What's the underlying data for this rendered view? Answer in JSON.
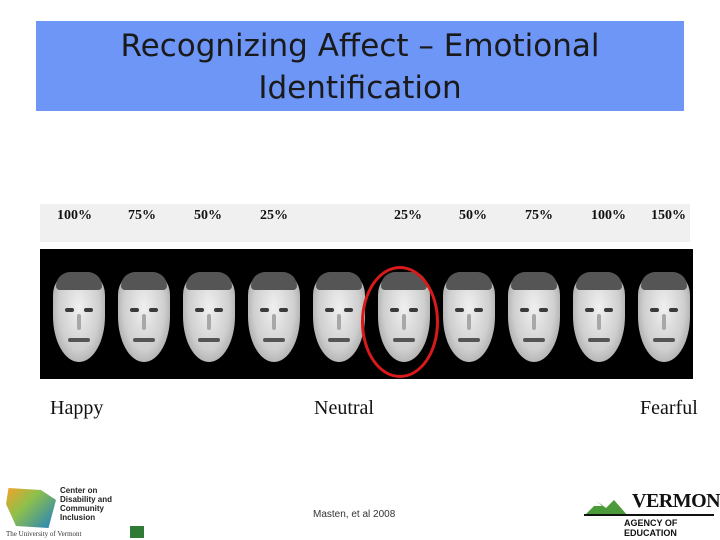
{
  "title": {
    "line1": "Recognizing Affect – Emotional",
    "line2": "Identification"
  },
  "percentages": [
    "100%",
    "75%",
    "50%",
    "25%",
    "25%",
    "50%",
    "75%",
    "100%",
    "150%"
  ],
  "labels": {
    "left": "Happy",
    "center": "Neutral",
    "right": "Fearful"
  },
  "citation": "Masten, et al 2008",
  "logo_left": {
    "text": "Center on Disability and Community Inclusion",
    "university": "The University of Vermont"
  },
  "logo_right": {
    "name": "VERMONT",
    "agency": "AGENCY OF EDUCATION"
  },
  "colors": {
    "title_band": "#6d96f7",
    "highlight_circle": "#d81a1a"
  }
}
